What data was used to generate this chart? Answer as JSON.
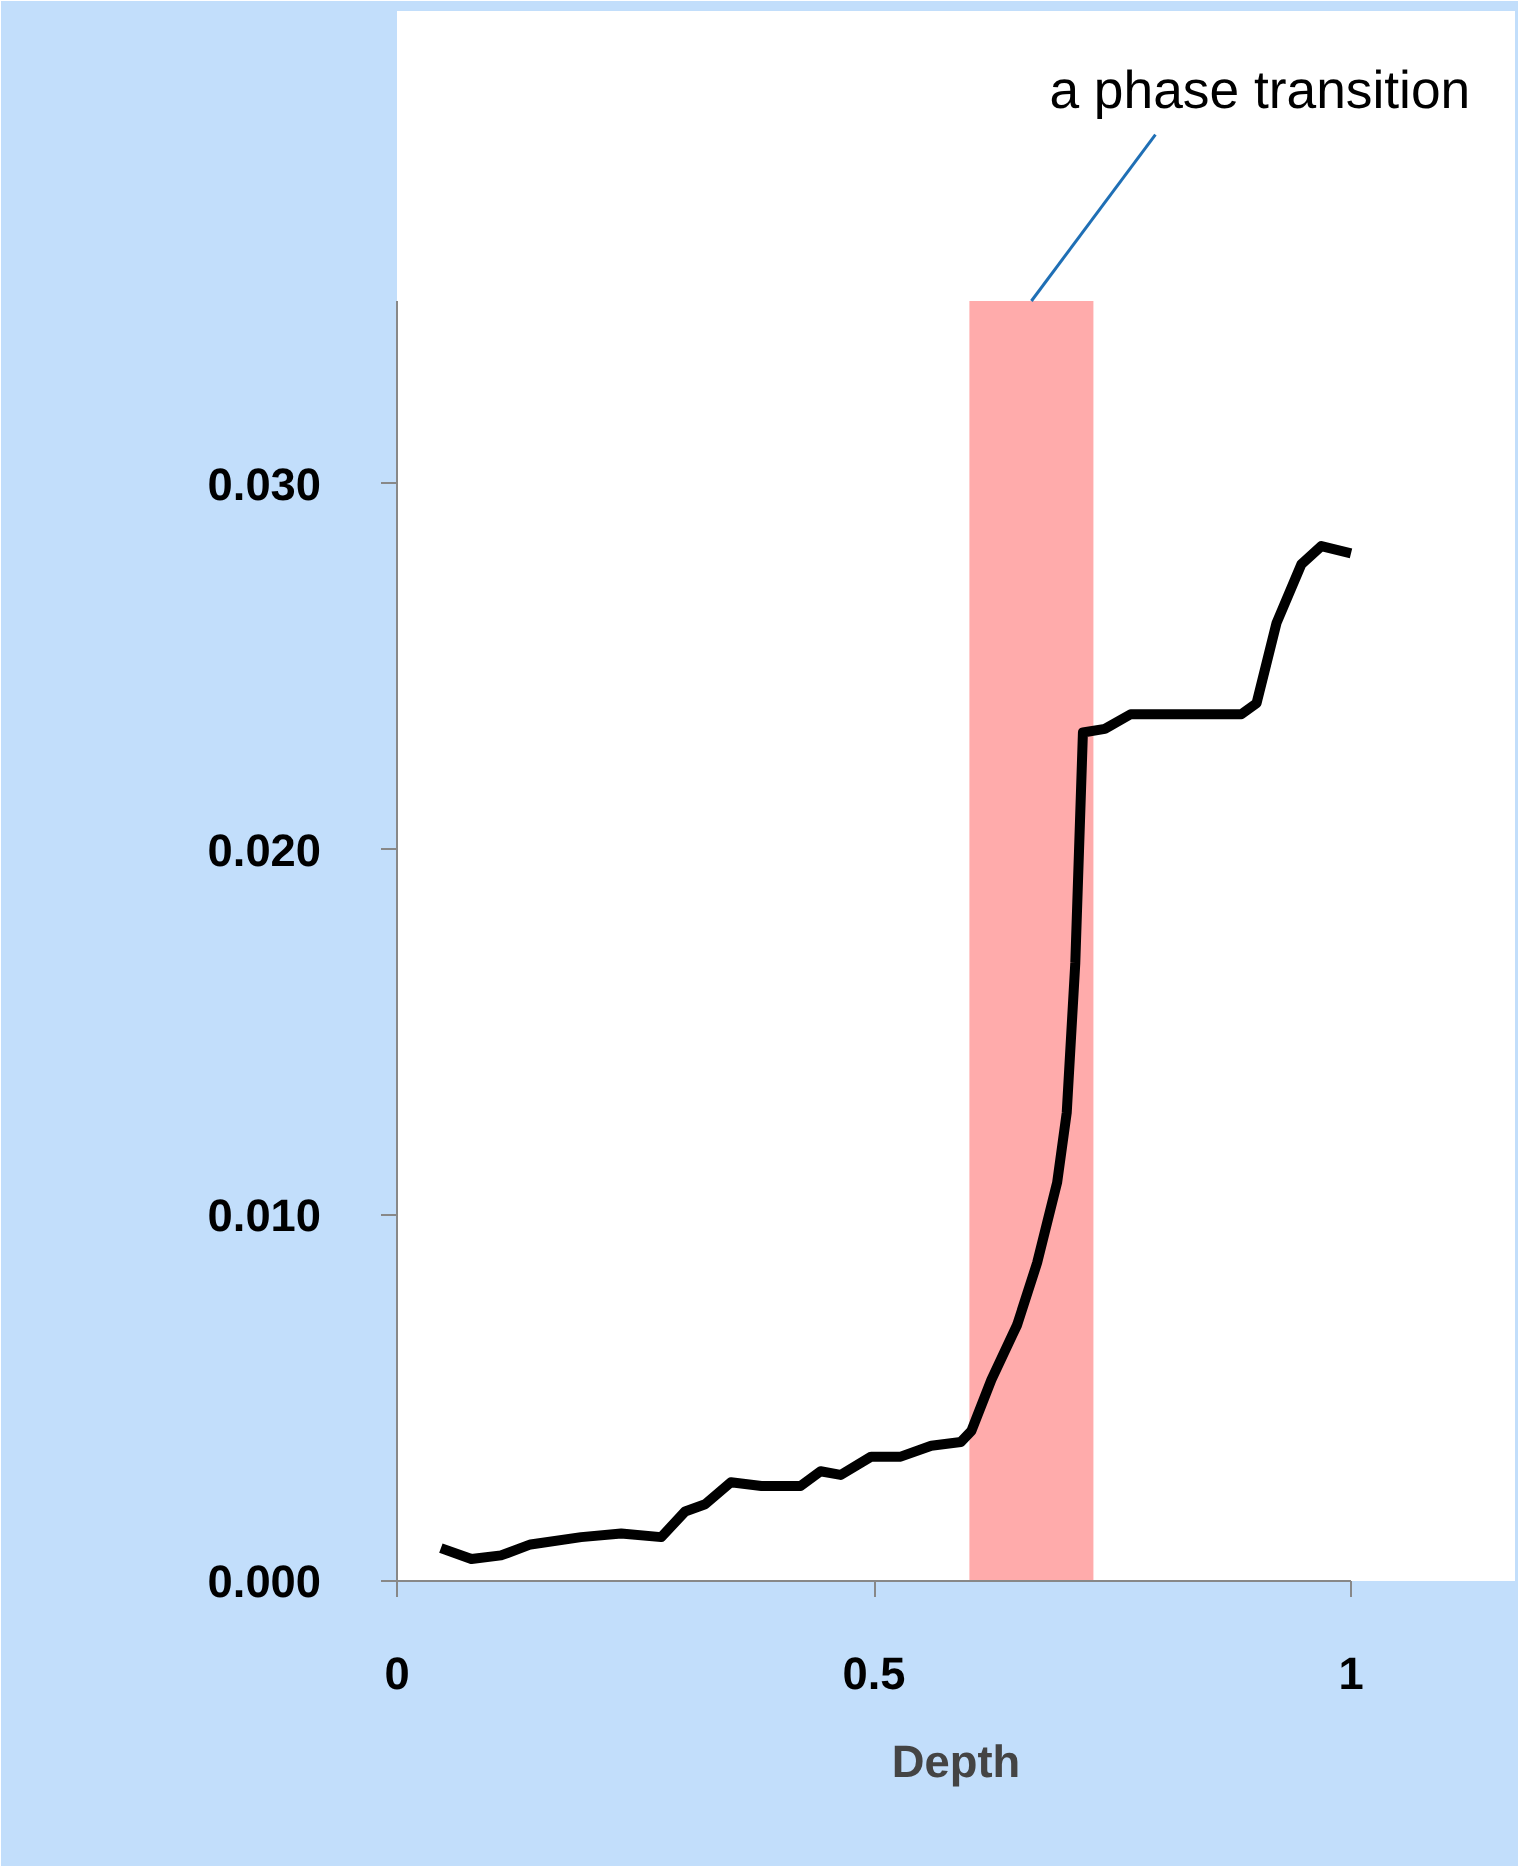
{
  "chart_data": {
    "type": "line",
    "xlabel": "Depth",
    "x": [
      0.046,
      0.078,
      0.109,
      0.14,
      0.193,
      0.235,
      0.277,
      0.302,
      0.323,
      0.35,
      0.382,
      0.423,
      0.444,
      0.465,
      0.497,
      0.528,
      0.56,
      0.591,
      0.602,
      0.623,
      0.65,
      0.671,
      0.692,
      0.702,
      0.711,
      0.719,
      0.742,
      0.769,
      0.822,
      0.885,
      0.901,
      0.922,
      0.948,
      0.969,
      1.0
    ],
    "series": [
      {
        "color": "#000000",
        "values": [
          0.0009,
          0.0006,
          0.0007,
          0.001,
          0.0012,
          0.0013,
          0.0012,
          0.0019,
          0.0021,
          0.0027,
          0.0026,
          0.0026,
          0.003,
          0.0029,
          0.0034,
          0.0034,
          0.0037,
          0.0038,
          0.0041,
          0.0055,
          0.007,
          0.0087,
          0.0109,
          0.0128,
          0.0169,
          0.0232,
          0.0233,
          0.0237,
          0.0237,
          0.0237,
          0.024,
          0.0262,
          0.0278,
          0.0283,
          0.0281
        ]
      }
    ],
    "xlim": [
      0,
      1
    ],
    "xticks": [
      0,
      0.5,
      1
    ],
    "ylim": [
      0,
      0.035
    ],
    "yticks": [
      {
        "value": 0,
        "label": "0.000"
      },
      {
        "value": 0.01,
        "label": "0.010"
      },
      {
        "value": 0.02,
        "label": "0.020"
      },
      {
        "value": 0.03,
        "label": "0.030"
      }
    ],
    "bands": [
      {
        "axis": "x",
        "from": 0.6,
        "to": 0.73,
        "color": "#ffabab",
        "label": "a phase transition"
      }
    ],
    "grid": false,
    "marker": "none",
    "line_style": "solid"
  }
}
